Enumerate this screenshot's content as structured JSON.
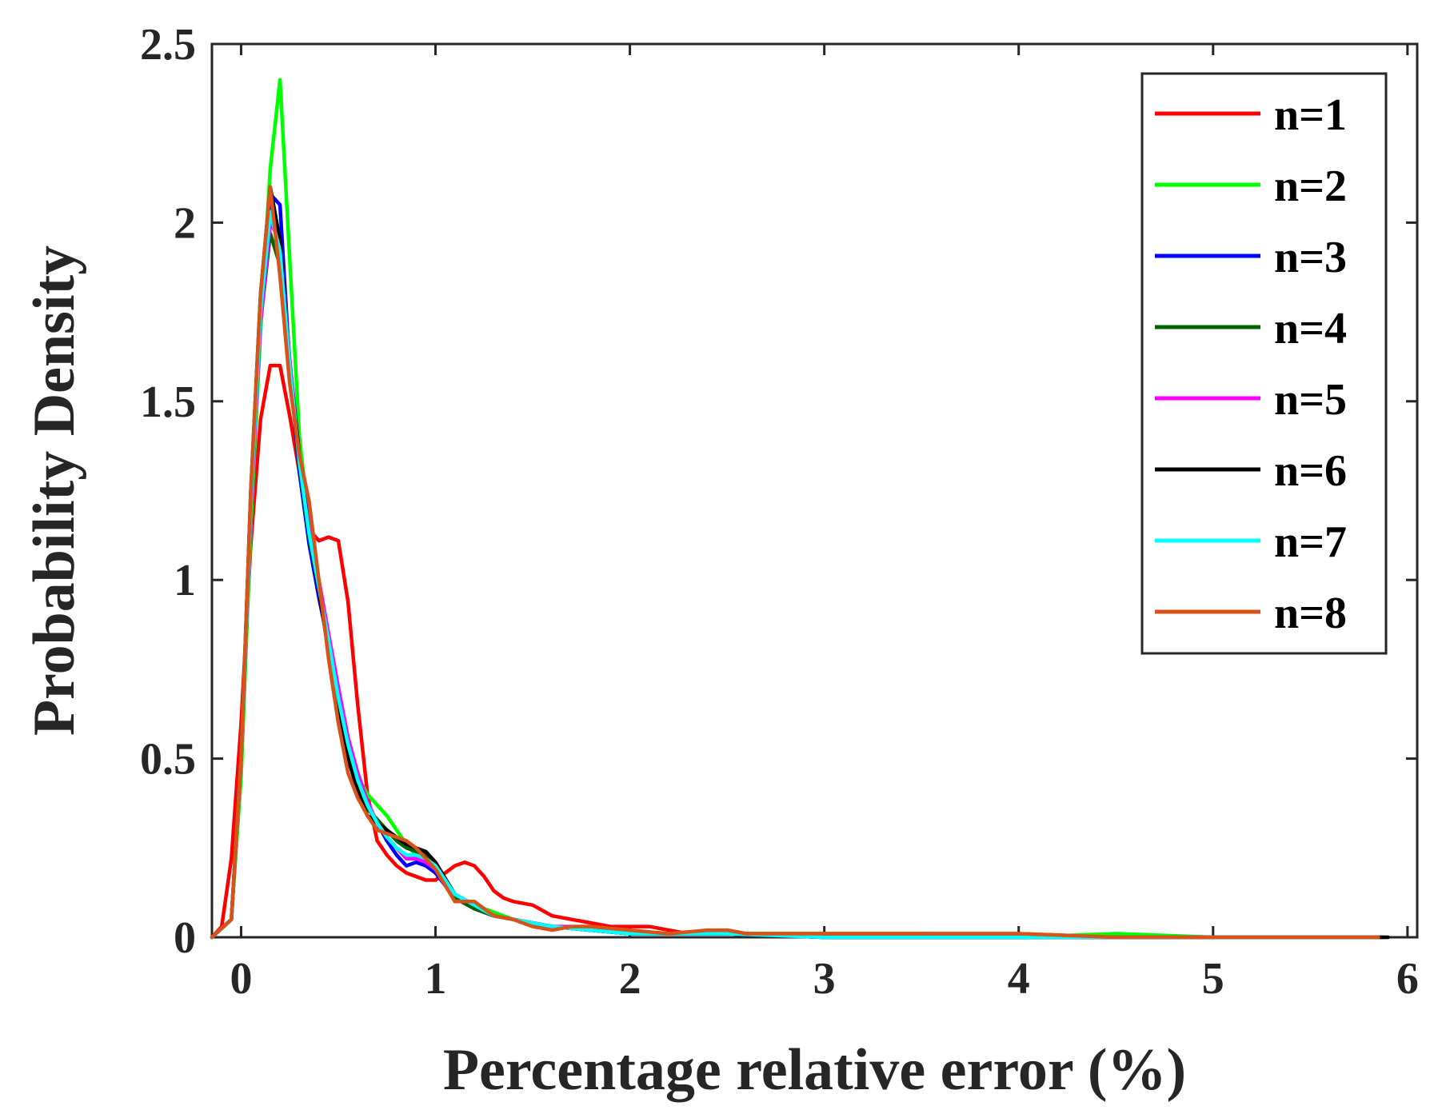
{
  "chart_data": {
    "type": "line",
    "title": "",
    "xlabel": "Percentage relative error (%)",
    "ylabel": "Probability Density",
    "xlim": [
      -0.15,
      6.05
    ],
    "ylim": [
      0,
      2.5
    ],
    "xticks": [
      0,
      1,
      2,
      3,
      4,
      5,
      6
    ],
    "yticks": [
      0,
      0.5,
      1,
      1.5,
      2,
      2.5
    ],
    "xtick_labels": [
      "0",
      "1",
      "2",
      "3",
      "4",
      "5",
      "6"
    ],
    "ytick_labels": [
      "0",
      "0.5",
      "1",
      "1.5",
      "2",
      "2.5"
    ],
    "grid": false,
    "legend_position": "top-right",
    "series": [
      {
        "name": "n=1",
        "color": "#ff0000",
        "x": [
          -0.15,
          -0.1,
          -0.05,
          0.0,
          0.05,
          0.1,
          0.15,
          0.2,
          0.25,
          0.3,
          0.35,
          0.4,
          0.45,
          0.5,
          0.55,
          0.6,
          0.65,
          0.7,
          0.75,
          0.8,
          0.85,
          0.9,
          0.95,
          1.0,
          1.05,
          1.1,
          1.15,
          1.2,
          1.25,
          1.3,
          1.35,
          1.4,
          1.5,
          1.6,
          1.7,
          1.8,
          1.9,
          2.0,
          2.1,
          2.2,
          2.3,
          2.4,
          2.5,
          2.6,
          2.8,
          3.0,
          3.5,
          4.0,
          4.5,
          5.0,
          5.5,
          5.8
        ],
        "y": [
          0.0,
          0.03,
          0.22,
          0.6,
          1.1,
          1.45,
          1.6,
          1.6,
          1.46,
          1.3,
          1.14,
          1.11,
          1.12,
          1.11,
          0.94,
          0.65,
          0.4,
          0.27,
          0.23,
          0.2,
          0.18,
          0.17,
          0.16,
          0.16,
          0.18,
          0.2,
          0.21,
          0.2,
          0.17,
          0.13,
          0.11,
          0.1,
          0.09,
          0.06,
          0.05,
          0.04,
          0.03,
          0.03,
          0.03,
          0.02,
          0.01,
          0.01,
          0.02,
          0.01,
          0.01,
          0.01,
          0.01,
          0.01,
          0.0,
          0.0,
          0.0,
          0.0
        ]
      },
      {
        "name": "n=2",
        "color": "#00ff00",
        "x": [
          -0.15,
          -0.05,
          0.0,
          0.05,
          0.1,
          0.15,
          0.2,
          0.25,
          0.3,
          0.35,
          0.4,
          0.45,
          0.5,
          0.55,
          0.6,
          0.65,
          0.7,
          0.75,
          0.8,
          0.85,
          0.9,
          0.95,
          1.0,
          1.1,
          1.2,
          1.3,
          1.4,
          1.5,
          1.6,
          1.8,
          2.0,
          2.5,
          3.0,
          3.5,
          4.0,
          4.5,
          5.0,
          5.5,
          5.85
        ],
        "y": [
          0.0,
          0.05,
          0.45,
          1.15,
          1.7,
          2.15,
          2.4,
          1.9,
          1.4,
          1.15,
          0.97,
          0.8,
          0.65,
          0.52,
          0.45,
          0.4,
          0.37,
          0.34,
          0.3,
          0.26,
          0.23,
          0.22,
          0.2,
          0.12,
          0.09,
          0.07,
          0.05,
          0.04,
          0.03,
          0.02,
          0.01,
          0.01,
          0.01,
          0.01,
          0.0,
          0.01,
          0.0,
          0.0,
          0.0
        ]
      },
      {
        "name": "n=3",
        "color": "#0000ff",
        "x": [
          -0.15,
          -0.05,
          0.0,
          0.05,
          0.1,
          0.15,
          0.2,
          0.25,
          0.3,
          0.35,
          0.4,
          0.45,
          0.5,
          0.55,
          0.6,
          0.65,
          0.7,
          0.75,
          0.8,
          0.85,
          0.9,
          0.95,
          1.0,
          1.1,
          1.2,
          1.3,
          1.4,
          1.5,
          1.6,
          1.8,
          2.0,
          2.5,
          3.0,
          3.5,
          4.0,
          4.5,
          5.0,
          5.5,
          5.85
        ],
        "y": [
          0.0,
          0.05,
          0.5,
          1.2,
          1.75,
          2.08,
          2.05,
          1.6,
          1.3,
          1.1,
          0.95,
          0.82,
          0.68,
          0.55,
          0.45,
          0.37,
          0.32,
          0.27,
          0.23,
          0.2,
          0.21,
          0.2,
          0.18,
          0.11,
          0.08,
          0.06,
          0.05,
          0.04,
          0.03,
          0.02,
          0.01,
          0.01,
          0.0,
          0.0,
          0.0,
          0.0,
          0.0,
          0.0,
          0.0
        ]
      },
      {
        "name": "n=4",
        "color": "#006400",
        "x": [
          -0.15,
          -0.05,
          0.0,
          0.05,
          0.1,
          0.15,
          0.2,
          0.25,
          0.3,
          0.35,
          0.4,
          0.45,
          0.5,
          0.55,
          0.6,
          0.65,
          0.7,
          0.75,
          0.8,
          0.85,
          0.9,
          0.95,
          1.0,
          1.1,
          1.2,
          1.3,
          1.4,
          1.5,
          1.6,
          1.8,
          2.0,
          2.5,
          3.0,
          3.5,
          4.0,
          4.5,
          5.0,
          5.5,
          5.88
        ],
        "y": [
          0.0,
          0.05,
          0.5,
          1.2,
          1.72,
          1.97,
          1.88,
          1.6,
          1.32,
          1.12,
          0.97,
          0.82,
          0.66,
          0.52,
          0.43,
          0.36,
          0.33,
          0.3,
          0.27,
          0.25,
          0.24,
          0.23,
          0.2,
          0.11,
          0.08,
          0.06,
          0.05,
          0.04,
          0.03,
          0.02,
          0.01,
          0.01,
          0.0,
          0.0,
          0.0,
          0.0,
          0.0,
          0.0,
          0.0
        ]
      },
      {
        "name": "n=5",
        "color": "#ff00ff",
        "x": [
          -0.15,
          -0.05,
          0.0,
          0.05,
          0.1,
          0.15,
          0.2,
          0.25,
          0.3,
          0.35,
          0.4,
          0.45,
          0.5,
          0.55,
          0.6,
          0.65,
          0.7,
          0.75,
          0.8,
          0.85,
          0.9,
          0.95,
          1.0,
          1.1,
          1.2,
          1.3,
          1.4,
          1.5,
          1.6,
          1.8,
          2.0,
          2.5,
          3.0,
          3.5,
          4.0,
          4.5,
          5.0,
          5.5,
          5.85
        ],
        "y": [
          0.0,
          0.05,
          0.5,
          1.2,
          1.72,
          2.0,
          1.95,
          1.62,
          1.35,
          1.15,
          1.0,
          0.85,
          0.7,
          0.56,
          0.46,
          0.38,
          0.32,
          0.28,
          0.25,
          0.22,
          0.22,
          0.21,
          0.19,
          0.12,
          0.09,
          0.06,
          0.05,
          0.04,
          0.03,
          0.03,
          0.01,
          0.01,
          0.0,
          0.0,
          0.0,
          0.0,
          0.0,
          0.0,
          0.0
        ]
      },
      {
        "name": "n=6",
        "color": "#000000",
        "x": [
          -0.15,
          -0.05,
          0.0,
          0.05,
          0.1,
          0.15,
          0.2,
          0.25,
          0.3,
          0.35,
          0.4,
          0.45,
          0.5,
          0.55,
          0.6,
          0.65,
          0.7,
          0.75,
          0.8,
          0.85,
          0.9,
          0.95,
          1.0,
          1.1,
          1.2,
          1.3,
          1.4,
          1.5,
          1.6,
          1.8,
          2.0,
          2.5,
          3.0,
          3.5,
          4.0,
          4.5,
          5.0,
          5.5,
          5.9
        ],
        "y": [
          0.0,
          0.05,
          0.5,
          1.25,
          1.8,
          2.1,
          1.95,
          1.6,
          1.35,
          1.13,
          0.97,
          0.8,
          0.64,
          0.5,
          0.41,
          0.34,
          0.32,
          0.3,
          0.28,
          0.26,
          0.25,
          0.24,
          0.21,
          0.12,
          0.09,
          0.06,
          0.05,
          0.04,
          0.03,
          0.02,
          0.01,
          0.01,
          0.0,
          0.0,
          0.0,
          0.0,
          0.0,
          0.0,
          0.0
        ]
      },
      {
        "name": "n=7",
        "color": "#00ffff",
        "x": [
          -0.15,
          -0.05,
          0.0,
          0.05,
          0.1,
          0.15,
          0.2,
          0.25,
          0.3,
          0.35,
          0.4,
          0.45,
          0.5,
          0.55,
          0.6,
          0.65,
          0.7,
          0.75,
          0.8,
          0.85,
          0.9,
          0.95,
          1.0,
          1.1,
          1.2,
          1.3,
          1.4,
          1.5,
          1.6,
          1.8,
          2.0,
          2.5,
          3.0,
          3.5,
          4.0,
          4.5,
          5.0,
          5.5,
          5.85
        ],
        "y": [
          0.0,
          0.05,
          0.5,
          1.22,
          1.75,
          2.03,
          1.92,
          1.6,
          1.33,
          1.13,
          0.98,
          0.83,
          0.67,
          0.54,
          0.44,
          0.37,
          0.32,
          0.28,
          0.25,
          0.23,
          0.23,
          0.22,
          0.2,
          0.12,
          0.09,
          0.06,
          0.05,
          0.04,
          0.03,
          0.02,
          0.01,
          0.01,
          0.0,
          0.0,
          0.0,
          0.0,
          0.0,
          0.0,
          0.0
        ]
      },
      {
        "name": "n=8",
        "color": "#d95319",
        "x": [
          -0.15,
          -0.05,
          0.0,
          0.05,
          0.1,
          0.15,
          0.2,
          0.25,
          0.3,
          0.35,
          0.4,
          0.45,
          0.5,
          0.55,
          0.6,
          0.65,
          0.7,
          0.75,
          0.8,
          0.85,
          0.9,
          0.95,
          1.0,
          1.1,
          1.2,
          1.3,
          1.4,
          1.5,
          1.6,
          1.7,
          1.8,
          2.0,
          2.2,
          2.4,
          2.5,
          2.6,
          2.8,
          3.0,
          3.5,
          4.0,
          4.5,
          5.0,
          5.5,
          5.85
        ],
        "y": [
          0.0,
          0.05,
          0.5,
          1.25,
          1.8,
          2.1,
          1.85,
          1.55,
          1.35,
          1.22,
          1.0,
          0.78,
          0.6,
          0.46,
          0.39,
          0.34,
          0.3,
          0.29,
          0.28,
          0.27,
          0.25,
          0.22,
          0.19,
          0.1,
          0.1,
          0.06,
          0.05,
          0.03,
          0.02,
          0.03,
          0.03,
          0.02,
          0.01,
          0.02,
          0.02,
          0.01,
          0.01,
          0.01,
          0.01,
          0.01,
          0.0,
          0.0,
          0.0,
          0.0
        ]
      }
    ]
  }
}
